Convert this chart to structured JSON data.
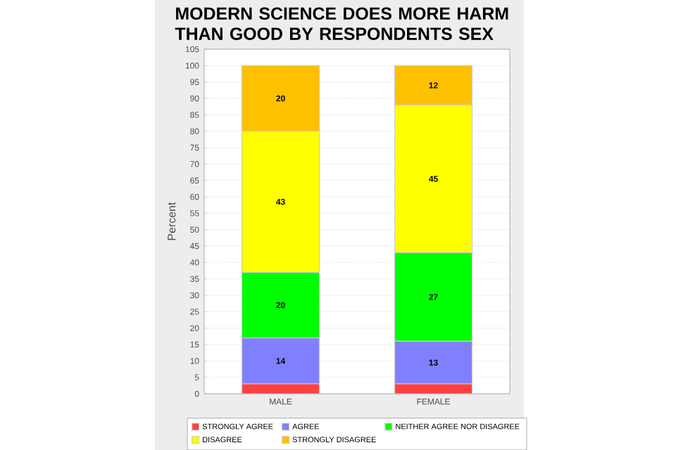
{
  "chart_data": {
    "type": "bar",
    "title": "MODERN SCIENCE DOES MORE HARM THAN GOOD BY RESPONDENTS SEX",
    "ylabel": "Percent",
    "categories": [
      "MALE",
      "FEMALE"
    ],
    "stacked": true,
    "series": [
      {
        "name": "STRONGLY AGREE",
        "color": "#ff4040",
        "values": [
          3,
          3
        ],
        "value_labels": [
          null,
          null
        ]
      },
      {
        "name": "AGREE",
        "color": "#8080ff",
        "values": [
          14,
          13
        ],
        "value_labels": [
          "14",
          "13"
        ]
      },
      {
        "name": "NEITHER AGREE NOR DISAGREE",
        "color": "#00ff00",
        "values": [
          20,
          27
        ],
        "value_labels": [
          "20",
          "27"
        ]
      },
      {
        "name": "DISAGREE",
        "color": "#ffff00",
        "values": [
          43,
          45
        ],
        "value_labels": [
          "43",
          "45"
        ]
      },
      {
        "name": "STRONGLY DISAGREE",
        "color": "#ffc000",
        "values": [
          20,
          12
        ],
        "value_labels": [
          "20",
          "12"
        ]
      }
    ],
    "ylim": [
      0,
      105
    ],
    "yticks": [
      0,
      5,
      10,
      15,
      20,
      25,
      30,
      35,
      40,
      45,
      50,
      55,
      60,
      65,
      70,
      75,
      80,
      85,
      90,
      95,
      100,
      105
    ],
    "grid": "y",
    "legend": "bottom"
  }
}
